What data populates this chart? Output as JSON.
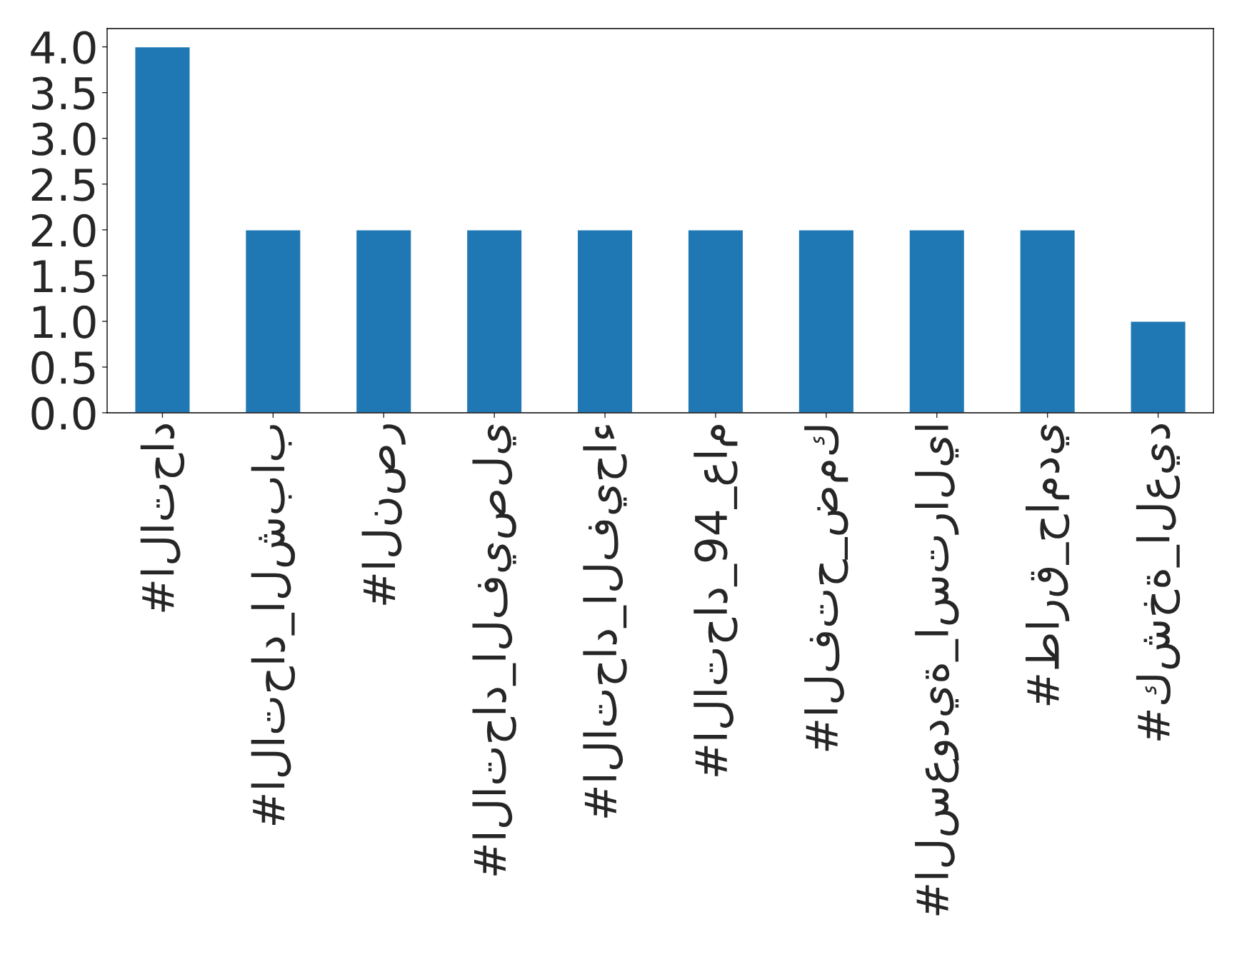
{
  "chart_data": {
    "type": "bar",
    "categories": [
      "#الاتحاد",
      "#الاتحاد_الشباب",
      "#النصر",
      "#الاتحاد_الفيصلي",
      "#الاتحاد_الفيحاء",
      "#الاتحاد_94_عام",
      "#الفتح_ضمك",
      "#السعودية_استراليا",
      "#طارق_حامدي",
      "#كشخة_العيد"
    ],
    "values": [
      4,
      2,
      2,
      2,
      2,
      2,
      2,
      2,
      2,
      1
    ],
    "color": "#1f77b4",
    "ylim": [
      0,
      4.2
    ],
    "yticks": [
      {
        "value": 0,
        "label": "0.0"
      },
      {
        "value": 0.5,
        "label": "0.5"
      },
      {
        "value": 1,
        "label": "1.0"
      },
      {
        "value": 1.5,
        "label": "1.5"
      },
      {
        "value": 2,
        "label": "2.0"
      },
      {
        "value": 2.5,
        "label": "2.5"
      },
      {
        "value": 3,
        "label": "3.0"
      },
      {
        "value": 3.5,
        "label": "3.5"
      },
      {
        "value": 4,
        "label": "4.0"
      }
    ],
    "grid": false
  }
}
